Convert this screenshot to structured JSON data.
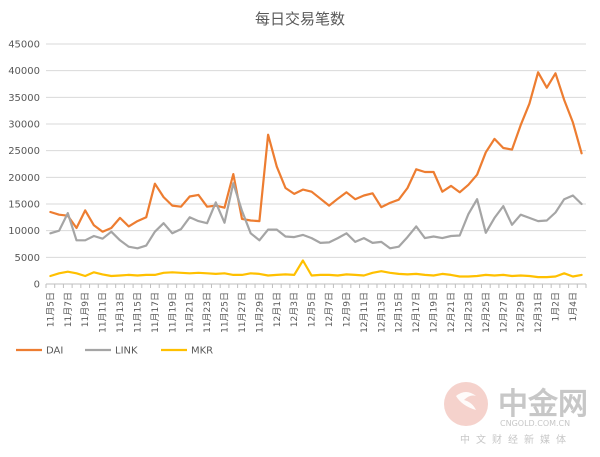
{
  "chart_data": {
    "type": "line",
    "title": "每日交易笔数",
    "xlabel": "",
    "ylabel": "",
    "ylim": [
      0,
      45000
    ],
    "yticks": [
      0,
      5000,
      10000,
      15000,
      20000,
      25000,
      30000,
      35000,
      40000,
      45000
    ],
    "grid": "horizontal",
    "legend_position": "bottom-left",
    "categories": [
      "11月5日",
      "11月6日",
      "11月7日",
      "11月8日",
      "11月9日",
      "11月10日",
      "11月11日",
      "11月12日",
      "11月13日",
      "11月14日",
      "11月15日",
      "11月16日",
      "11月17日",
      "11月18日",
      "11月19日",
      "11月20日",
      "11月21日",
      "11月22日",
      "11月23日",
      "11月24日",
      "11月25日",
      "11月26日",
      "11月27日",
      "11月28日",
      "11月29日",
      "11月30日",
      "12月1日",
      "12月2日",
      "12月3日",
      "12月4日",
      "12月5日",
      "12月6日",
      "12月7日",
      "12月8日",
      "12月9日",
      "12月10日",
      "12月11日",
      "12月12日",
      "12月13日",
      "12月14日",
      "12月15日",
      "12月16日",
      "12月17日",
      "12月18日",
      "12月19日",
      "12月20日",
      "12月21日",
      "12月22日",
      "12月23日",
      "12月24日",
      "12月25日",
      "12月26日",
      "12月27日",
      "12月28日",
      "12月29日",
      "12月30日",
      "12月31日",
      "1月1日",
      "1月2日",
      "1月3日",
      "1月4日",
      "1月5日"
    ],
    "tick_labels": [
      "11月5日",
      "11月7日",
      "11月9日",
      "11月11日",
      "11月13日",
      "11月15日",
      "11月17日",
      "11月19日",
      "11月21日",
      "11月23日",
      "11月25日",
      "11月27日",
      "11月29日",
      "12月1日",
      "12月3日",
      "12月5日",
      "12月7日",
      "12月9日",
      "12月11日",
      "12月13日",
      "12月15日",
      "12月17日",
      "12月19日",
      "12月21日",
      "12月23日",
      "12月25日",
      "12月27日",
      "12月29日",
      "12月31日",
      "1月2日",
      "1月4日"
    ],
    "series": [
      {
        "name": "DAI",
        "color": "#ED7D31",
        "values": [
          13500,
          13000,
          12800,
          10500,
          13800,
          11000,
          9800,
          10500,
          12400,
          10800,
          11800,
          12500,
          18800,
          16300,
          14700,
          14500,
          16400,
          16700,
          14500,
          14700,
          14300,
          20600,
          12200,
          11900,
          11800,
          28000,
          22000,
          18000,
          16900,
          17700,
          17300,
          16000,
          14700,
          16000,
          17200,
          15900,
          16600,
          17000,
          14400,
          15200,
          15800,
          18000,
          21500,
          21000,
          21000,
          17300,
          18400,
          17200,
          18600,
          20500,
          24700,
          27200,
          25500,
          25200,
          29800,
          33800,
          39700,
          36800,
          39500,
          34500,
          30300,
          24500
        ]
      },
      {
        "name": "LINK",
        "color": "#A5A5A5",
        "values": [
          9500,
          10000,
          13300,
          8200,
          8200,
          9000,
          8500,
          9800,
          8200,
          7000,
          6700,
          7200,
          9800,
          11400,
          9500,
          10300,
          12500,
          11800,
          11400,
          15300,
          11500,
          18900,
          13700,
          9500,
          8200,
          10200,
          10200,
          8900,
          8800,
          9200,
          8600,
          7700,
          7800,
          8600,
          9500,
          7900,
          8600,
          7700,
          7900,
          6700,
          7000,
          8800,
          10800,
          8600,
          8900,
          8600,
          9000,
          9100,
          13100,
          15900,
          9600,
          12400,
          14600,
          11100,
          13000,
          12400,
          11800,
          11900,
          13400,
          15900,
          16600,
          15000
        ]
      },
      {
        "name": "MKR",
        "color": "#FFC000",
        "values": [
          1500,
          2000,
          2300,
          2000,
          1500,
          2200,
          1800,
          1500,
          1600,
          1700,
          1600,
          1700,
          1700,
          2100,
          2200,
          2100,
          2000,
          2100,
          2000,
          1900,
          2000,
          1700,
          1700,
          2000,
          1900,
          1600,
          1700,
          1800,
          1700,
          4400,
          1600,
          1700,
          1700,
          1600,
          1800,
          1700,
          1600,
          2100,
          2400,
          2100,
          1900,
          1800,
          1900,
          1700,
          1600,
          1900,
          1700,
          1400,
          1400,
          1500,
          1700,
          1600,
          1700,
          1500,
          1600,
          1500,
          1300,
          1300,
          1400,
          2000,
          1400,
          1700
        ]
      }
    ]
  },
  "watermark": {
    "logo_text": "中金网",
    "url": "CNGOLD.COM.CN",
    "subtitle": "中文财经新媒体",
    "logo_color": "#f2c7c2"
  }
}
